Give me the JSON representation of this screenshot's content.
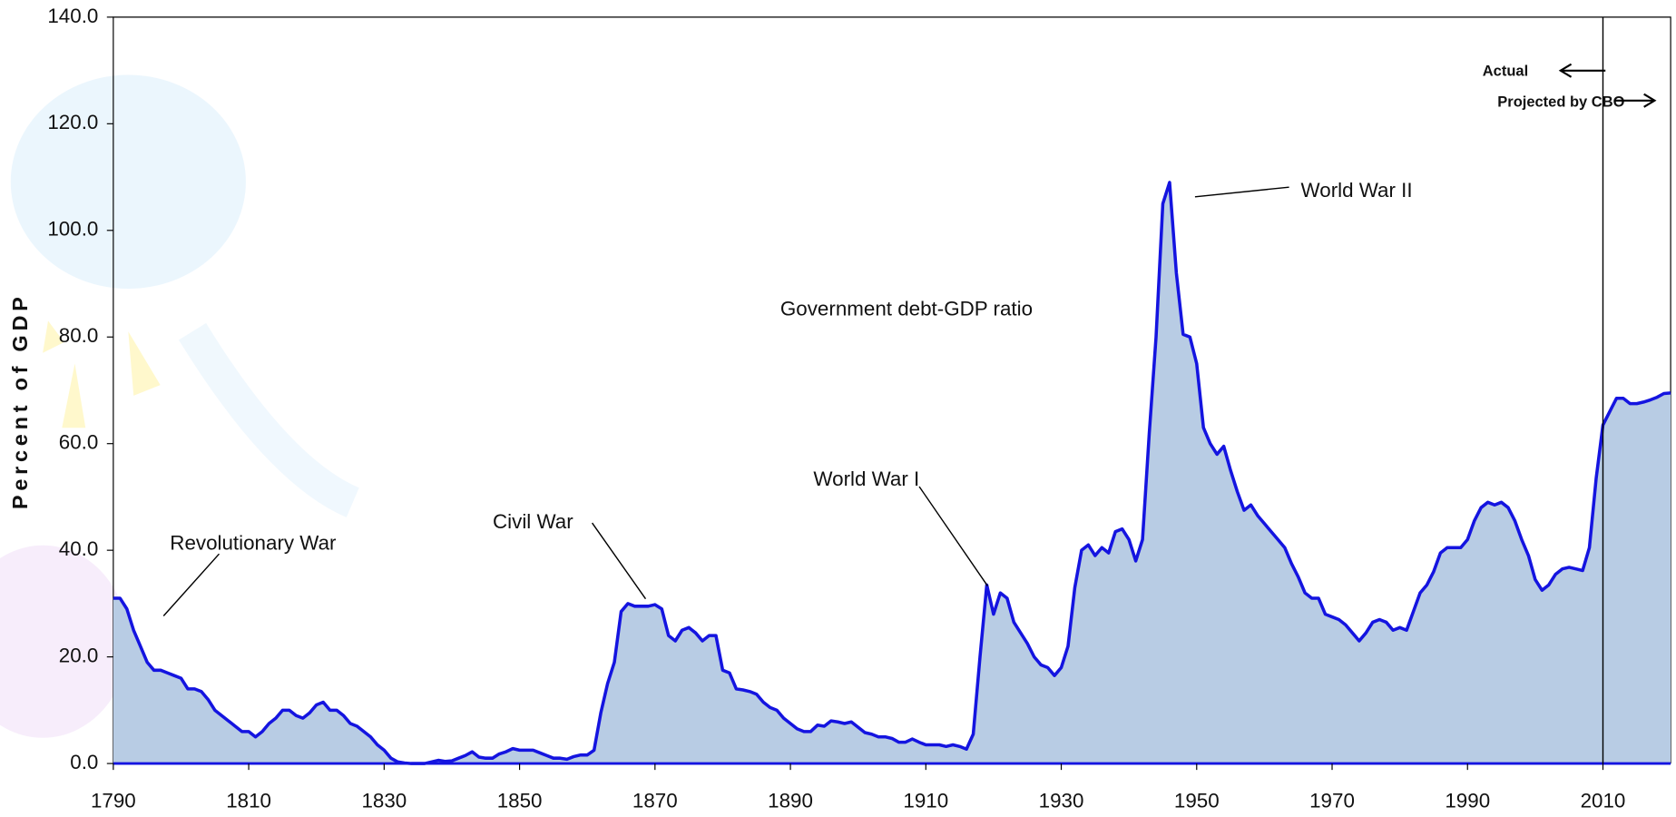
{
  "chart_data": {
    "type": "area",
    "y_label": "Percent of GDP",
    "x": [
      1790,
      1791,
      1792,
      1793,
      1794,
      1795,
      1796,
      1797,
      1798,
      1799,
      1800,
      1801,
      1802,
      1803,
      1804,
      1805,
      1806,
      1807,
      1808,
      1809,
      1810,
      1811,
      1812,
      1813,
      1814,
      1815,
      1816,
      1817,
      1818,
      1819,
      1820,
      1821,
      1822,
      1823,
      1824,
      1825,
      1826,
      1827,
      1828,
      1829,
      1830,
      1831,
      1832,
      1833,
      1834,
      1835,
      1836,
      1837,
      1838,
      1839,
      1840,
      1841,
      1842,
      1843,
      1844,
      1845,
      1846,
      1847,
      1848,
      1849,
      1850,
      1851,
      1852,
      1853,
      1854,
      1855,
      1856,
      1857,
      1858,
      1859,
      1860,
      1861,
      1862,
      1863,
      1864,
      1865,
      1866,
      1867,
      1868,
      1869,
      1870,
      1871,
      1872,
      1873,
      1874,
      1875,
      1876,
      1877,
      1878,
      1879,
      1880,
      1881,
      1882,
      1883,
      1884,
      1885,
      1886,
      1887,
      1888,
      1889,
      1890,
      1891,
      1892,
      1893,
      1894,
      1895,
      1896,
      1897,
      1898,
      1899,
      1900,
      1901,
      1902,
      1903,
      1904,
      1905,
      1906,
      1907,
      1908,
      1909,
      1910,
      1911,
      1912,
      1913,
      1914,
      1915,
      1916,
      1917,
      1918,
      1919,
      1920,
      1921,
      1922,
      1923,
      1924,
      1925,
      1926,
      1927,
      1928,
      1929,
      1930,
      1931,
      1932,
      1933,
      1934,
      1935,
      1936,
      1937,
      1938,
      1939,
      1940,
      1941,
      1942,
      1943,
      1944,
      1945,
      1946,
      1947,
      1948,
      1949,
      1950,
      1951,
      1952,
      1953,
      1954,
      1955,
      1956,
      1957,
      1958,
      1959,
      1960,
      1961,
      1962,
      1963,
      1964,
      1965,
      1966,
      1967,
      1968,
      1969,
      1970,
      1971,
      1972,
      1973,
      1974,
      1975,
      1976,
      1977,
      1978,
      1979,
      1980,
      1981,
      1982,
      1983,
      1984,
      1985,
      1986,
      1987,
      1988,
      1989,
      1990,
      1991,
      1992,
      1993,
      1994,
      1995,
      1996,
      1997,
      1998,
      1999,
      2000,
      2001,
      2002,
      2003,
      2004,
      2005,
      2006,
      2007,
      2008,
      2009,
      2010,
      2011,
      2012,
      2013,
      2014,
      2015,
      2016,
      2017,
      2018,
      2019,
      2020
    ],
    "series": [
      {
        "name": "Government debt-GDP ratio",
        "color": "#1414e0",
        "fill": "#b8cce4",
        "values": [
          31,
          31,
          29,
          25,
          22,
          19,
          17.5,
          17.5,
          17,
          16.5,
          16,
          14,
          14,
          13.5,
          12,
          10,
          9,
          8,
          7,
          6,
          6,
          5,
          6,
          7.5,
          8.5,
          10,
          10,
          9,
          8.5,
          9.5,
          11,
          11.5,
          10,
          10,
          9,
          7.5,
          7,
          6,
          5,
          3.5,
          2.5,
          1,
          0.3,
          0.1,
          0,
          0,
          0,
          0.3,
          0.6,
          0.4,
          0.5,
          1,
          1.5,
          2.2,
          1.2,
          1,
          1,
          1.8,
          2.2,
          2.8,
          2.5,
          2.5,
          2.5,
          2,
          1.5,
          1,
          1,
          0.8,
          1.3,
          1.6,
          1.6,
          2.5,
          9.5,
          15,
          19,
          28.5,
          30,
          29.5,
          29.5,
          29.5,
          29.8,
          29,
          24,
          23,
          25,
          25.5,
          24.5,
          23,
          24,
          24,
          17.5,
          17,
          14,
          13.8,
          13.5,
          13,
          11.5,
          10.5,
          10,
          8.5,
          7.5,
          6.5,
          6,
          6,
          7.2,
          7,
          8,
          7.8,
          7.5,
          7.8,
          6.8,
          5.8,
          5.5,
          5,
          5,
          4.7,
          4,
          4,
          4.6,
          4,
          3.5,
          3.5,
          3.5,
          3.2,
          3.5,
          3.2,
          2.7,
          5.5,
          20,
          33.5,
          28,
          32,
          31,
          26.5,
          24.5,
          22.5,
          20,
          18.5,
          18,
          16.5,
          18,
          22,
          33,
          40,
          41,
          39,
          40.5,
          39.5,
          43.5,
          44,
          42,
          38,
          42,
          62,
          80,
          105,
          109,
          92,
          80.5,
          80,
          75,
          63,
          60,
          58,
          59.5,
          55,
          51,
          47.5,
          48.5,
          46.5,
          45,
          43.5,
          42,
          40.5,
          37.5,
          35,
          32,
          31,
          31,
          28,
          27.5,
          27,
          26,
          24.5,
          23,
          24.5,
          26.5,
          27,
          26.5,
          25,
          25.5,
          25,
          28.5,
          32,
          33.5,
          36,
          39.5,
          40.5,
          40.5,
          40.5,
          42,
          45.5,
          48,
          49,
          48.5,
          49,
          48,
          45.5,
          42,
          39,
          34.5,
          32.5,
          33.5,
          35.5,
          36.5,
          36.8,
          36.5,
          36.2,
          40.5,
          53.5,
          63.5,
          66,
          68.5,
          68.5,
          67.5,
          67.5,
          67.8,
          68.2,
          68.7,
          69.4,
          69.5
        ]
      }
    ],
    "xlim": [
      1790,
      2020
    ],
    "xticks": [
      1790,
      1810,
      1830,
      1850,
      1870,
      1890,
      1910,
      1930,
      1950,
      1970,
      1990,
      2010
    ],
    "ylim": [
      0,
      140
    ],
    "yticks": [
      {
        "value": 0,
        "label": "0.0"
      },
      {
        "value": 20,
        "label": "20.0"
      },
      {
        "value": 40,
        "label": "40.0"
      },
      {
        "value": 60,
        "label": "60.0"
      },
      {
        "value": 80,
        "label": "80.0"
      },
      {
        "value": 100,
        "label": "100.0"
      },
      {
        "value": 120,
        "label": "120.0"
      },
      {
        "value": 140,
        "label": "140.0"
      }
    ],
    "divider_x": 2010,
    "annotations": [
      {
        "text": "Revolutionary War"
      },
      {
        "text": "Civil War"
      },
      {
        "text": "World War I"
      },
      {
        "text": "World War II"
      },
      {
        "text": "Actual"
      },
      {
        "text": "Projected by CBO"
      }
    ]
  }
}
